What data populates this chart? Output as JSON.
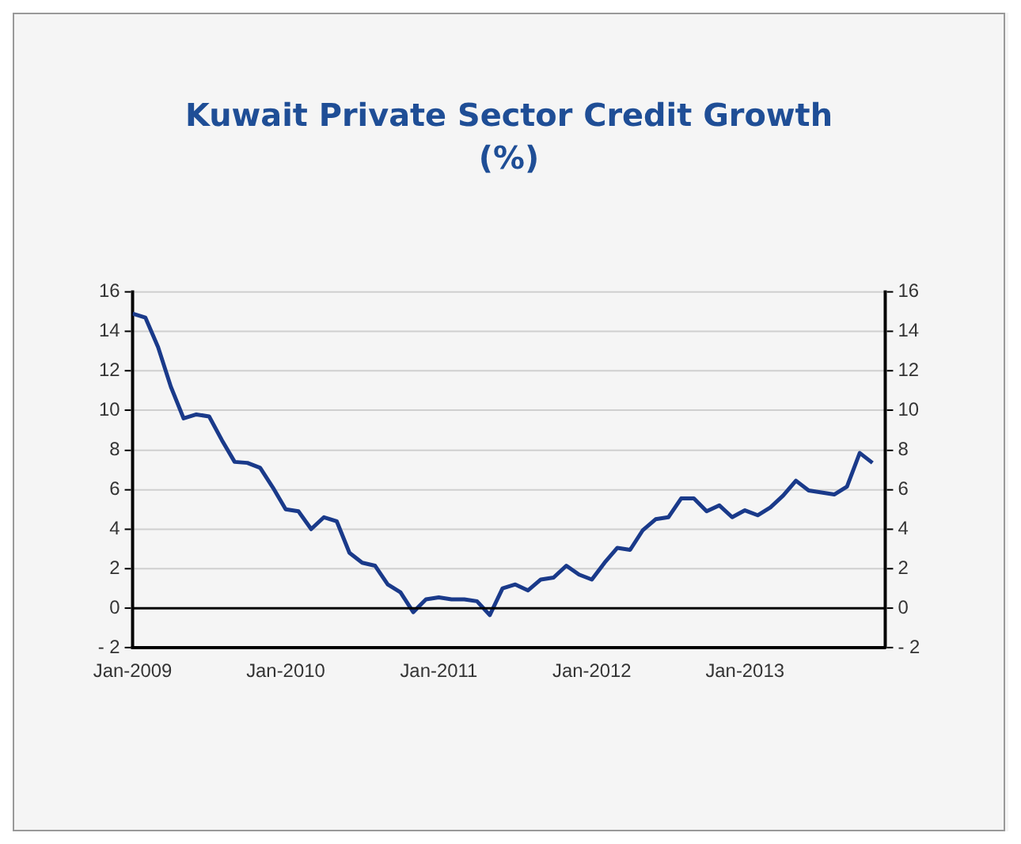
{
  "chart_data": {
    "type": "line",
    "title": "Kuwait Private Sector Credit Growth (%)",
    "x": [
      "2009-01",
      "2009-02",
      "2009-03",
      "2009-04",
      "2009-05",
      "2009-06",
      "2009-07",
      "2009-08",
      "2009-09",
      "2009-10",
      "2009-11",
      "2009-12",
      "2010-01",
      "2010-02",
      "2010-03",
      "2010-04",
      "2010-05",
      "2010-06",
      "2010-07",
      "2010-08",
      "2010-09",
      "2010-10",
      "2010-11",
      "2010-12",
      "2011-01",
      "2011-02",
      "2011-03",
      "2011-04",
      "2011-05",
      "2011-06",
      "2011-07",
      "2011-08",
      "2011-09",
      "2011-10",
      "2011-11",
      "2011-12",
      "2012-01",
      "2012-02",
      "2012-03",
      "2012-04",
      "2012-05",
      "2012-06",
      "2012-07",
      "2012-08",
      "2012-09",
      "2012-10",
      "2012-11",
      "2012-12",
      "2013-01",
      "2013-02",
      "2013-03",
      "2013-04",
      "2013-05",
      "2013-06",
      "2013-07",
      "2013-08",
      "2013-09",
      "2013-10",
      "2013-11"
    ],
    "series": [
      {
        "color": "#1a3a8a",
        "values": [
          14.9,
          14.7,
          13.2,
          11.2,
          9.6,
          9.8,
          9.7,
          8.5,
          7.4,
          7.35,
          7.1,
          6.1,
          5.0,
          4.9,
          4.0,
          4.6,
          4.4,
          2.8,
          2.3,
          2.15,
          1.2,
          0.8,
          -0.2,
          0.45,
          0.55,
          0.45,
          0.45,
          0.35,
          -0.35,
          1.0,
          1.2,
          0.9,
          1.45,
          1.55,
          2.15,
          1.7,
          1.45,
          2.3,
          3.05,
          2.95,
          3.95,
          4.5,
          4.6,
          5.55,
          5.55,
          4.9,
          5.2,
          4.6,
          4.95,
          4.7,
          5.1,
          5.7,
          6.45,
          5.95,
          5.85,
          5.75,
          6.15,
          7.85,
          7.35
        ]
      }
    ],
    "xlim": [
      "2009-01",
      "2013-12"
    ],
    "xticks": [
      {
        "value": "2009-01",
        "label": "Jan-2009"
      },
      {
        "value": "2010-01",
        "label": "Jan-2010"
      },
      {
        "value": "2011-01",
        "label": "Jan-2011"
      },
      {
        "value": "2012-01",
        "label": "Jan-2012"
      },
      {
        "value": "2013-01",
        "label": "Jan-2013"
      }
    ],
    "ylim": [
      -2,
      16
    ],
    "yticks": [
      -2,
      0,
      2,
      4,
      6,
      8,
      10,
      12,
      14,
      16
    ],
    "y2lim": [
      -2,
      16
    ],
    "y2ticks": [
      -2,
      0,
      2,
      4,
      6,
      8,
      10,
      12,
      14,
      16
    ],
    "ref_lines": [
      {
        "axis": "y",
        "value": 0,
        "color": "#000000"
      }
    ],
    "grid": "y",
    "legend": false,
    "marker": "none",
    "line_style": "solid"
  }
}
